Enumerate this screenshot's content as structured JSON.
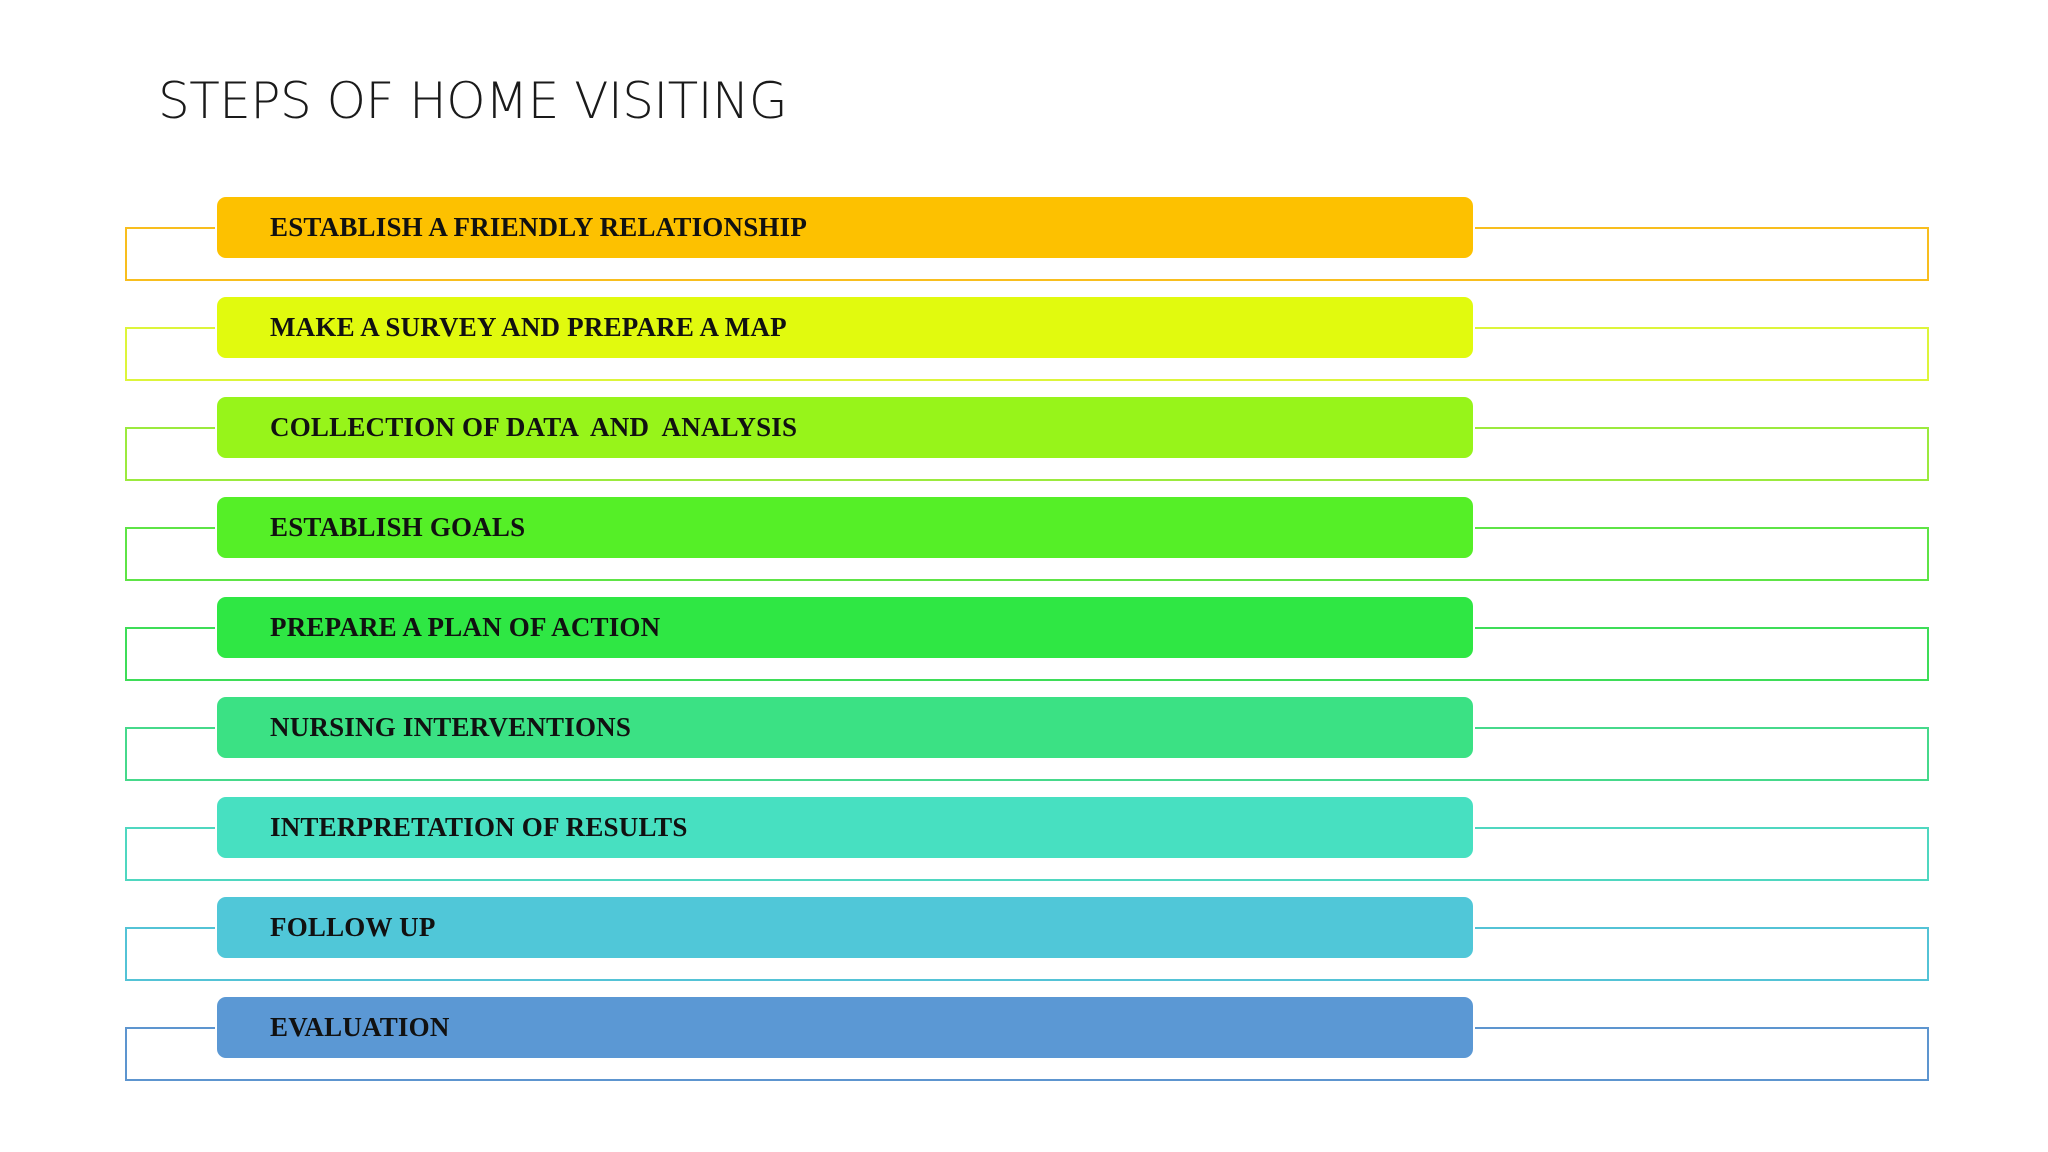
{
  "title": "STEPS OF HOME VISITING",
  "steps": [
    {
      "label": "ESTABLISH A FRIENDLY RELATIONSHIP",
      "bar_color": "#FDC100",
      "frame_color": "#F8BE1E"
    },
    {
      "label": "MAKE A SURVEY AND PREPARE A MAP",
      "bar_color": "#E1FA0E",
      "frame_color": "#DDF53A"
    },
    {
      "label": "COLLECTION OF DATA  AND  ANALYSIS",
      "bar_color": "#97F41A",
      "frame_color": "#9BEA3E"
    },
    {
      "label": "ESTABLISH GOALS",
      "bar_color": "#55EF27",
      "frame_color": "#5EE446"
    },
    {
      "label": "PREPARE A PLAN OF ACTION",
      "bar_color": "#2FE744",
      "frame_color": "#3EDD58"
    },
    {
      "label": "NURSING INTERVENTIONS",
      "bar_color": "#3BE184",
      "frame_color": "#46D98B"
    },
    {
      "label": "INTERPRETATION OF RESULTS",
      "bar_color": "#47E0C1",
      "frame_color": "#4FD7C0"
    },
    {
      "label": "FOLLOW UP",
      "bar_color": "#50C7D8",
      "frame_color": "#53C3D6"
    },
    {
      "label": "EVALUATION",
      "bar_color": "#5B98D4",
      "frame_color": "#5D95CF"
    }
  ]
}
